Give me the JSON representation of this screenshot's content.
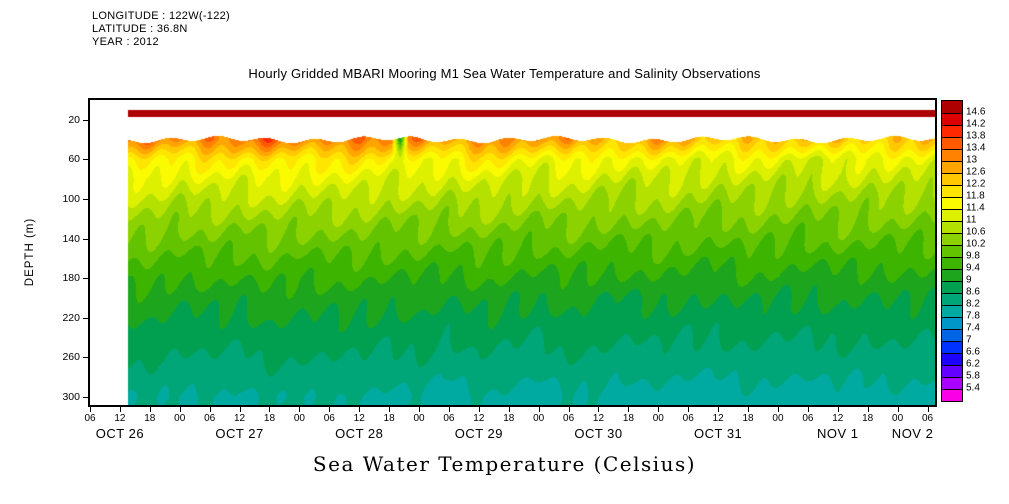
{
  "meta": {
    "longitude": "LONGITUDE : 122W(-122)",
    "latitude": "LATITUDE : 36.8N",
    "year": "YEAR : 2012"
  },
  "chart_data": {
    "type": "heatmap",
    "title": "Hourly Gridded MBARI Mooring M1 Sea Water Temperature and Salinity Observations",
    "xlabel": "Sea Water Temperature (Celsius)",
    "ylabel": "DEPTH (m)",
    "units": "Celsius",
    "y_units": "m",
    "y_ticks": [
      20,
      60,
      100,
      140,
      180,
      220,
      260,
      300
    ],
    "y_range": [
      0,
      308
    ],
    "x_start": "OCT 26 06:00",
    "x_end": "NOV 2 06:00",
    "x_tick_labels": [
      "06",
      "12",
      "18",
      "00",
      "06",
      "12",
      "18",
      "00",
      "06",
      "12",
      "18",
      "00",
      "06",
      "12",
      "18",
      "00",
      "06",
      "12",
      "18",
      "00",
      "06",
      "12",
      "18",
      "00",
      "06",
      "12",
      "18",
      "00",
      "06"
    ],
    "x_day_labels": [
      "OCT 26",
      "OCT 27",
      "OCT 28",
      "OCT 29",
      "OCT 30",
      "OCT 31",
      "NOV 1",
      "NOV 2"
    ],
    "day_label_tick_centers": [
      1,
      5,
      9,
      13,
      17,
      21,
      25,
      27.5
    ],
    "data_start_frac": 0.044,
    "surface_band": {
      "depth_top": 10,
      "depth_bottom": 17,
      "temperature": 14.7
    },
    "anomaly": {
      "tick_index": 10.35,
      "width_ticks": 0.28,
      "depth_top": 40,
      "depth_reach": 22,
      "temperature": 8.8
    },
    "grid": {
      "depths": [
        40,
        60,
        80,
        100,
        120,
        140,
        160,
        180,
        200,
        220,
        240,
        260,
        280,
        300
      ],
      "values": [
        [
          12.9,
          13.1,
          13.4,
          12.9,
          13.5,
          13.0,
          13.6,
          13.1,
          13.3,
          13.5,
          12.9,
          13.2,
          12.7,
          13.4,
          13.0,
          12.6,
          13.1,
          12.8,
          12.5,
          12.9,
          12.6,
          12.3,
          12.7,
          12.4,
          12.2,
          12.6,
          12.3,
          12.5,
          12.4
        ],
        [
          11.7,
          11.9,
          12.1,
          11.6,
          12.0,
          11.7,
          12.2,
          11.8,
          11.9,
          12.0,
          11.6,
          11.8,
          11.5,
          12.0,
          11.7,
          11.4,
          11.8,
          11.5,
          11.3,
          11.6,
          11.4,
          11.2,
          11.5,
          11.3,
          11.1,
          11.4,
          11.2,
          11.4,
          11.3
        ],
        [
          11.2,
          11.3,
          11.4,
          11.1,
          11.4,
          11.2,
          11.5,
          11.2,
          11.3,
          11.4,
          11.1,
          11.2,
          11.0,
          11.3,
          11.1,
          10.9,
          11.2,
          11.0,
          10.9,
          11.1,
          10.9,
          10.8,
          11.0,
          10.9,
          10.8,
          11.0,
          10.9,
          11.0,
          10.9
        ],
        [
          10.8,
          10.9,
          11.0,
          10.7,
          10.9,
          10.8,
          11.0,
          10.8,
          10.9,
          10.9,
          10.7,
          10.8,
          10.6,
          10.9,
          10.7,
          10.6,
          10.8,
          10.6,
          10.5,
          10.7,
          10.6,
          10.5,
          10.7,
          10.5,
          10.4,
          10.6,
          10.5,
          10.6,
          10.5
        ],
        [
          10.4,
          10.5,
          10.6,
          10.3,
          10.5,
          10.4,
          10.6,
          10.4,
          10.5,
          10.5,
          10.3,
          10.4,
          10.3,
          10.5,
          10.4,
          10.2,
          10.4,
          10.3,
          10.2,
          10.4,
          10.2,
          10.1,
          10.3,
          10.2,
          10.1,
          10.3,
          10.2,
          10.3,
          10.2
        ],
        [
          10.1,
          10.2,
          10.2,
          10.0,
          10.2,
          10.0,
          10.2,
          10.1,
          10.1,
          10.2,
          10.0,
          10.1,
          9.9,
          10.1,
          10.0,
          9.9,
          10.1,
          9.9,
          9.9,
          10.0,
          9.9,
          9.8,
          10.0,
          9.9,
          9.8,
          10.0,
          9.9,
          9.9,
          9.9
        ],
        [
          9.8,
          9.8,
          9.9,
          9.7,
          9.8,
          9.7,
          9.9,
          9.7,
          9.8,
          9.8,
          9.7,
          9.7,
          9.6,
          9.8,
          9.7,
          9.6,
          9.7,
          9.6,
          9.6,
          9.7,
          9.6,
          9.5,
          9.7,
          9.6,
          9.5,
          9.6,
          9.6,
          9.6,
          9.6
        ],
        [
          9.5,
          9.5,
          9.6,
          9.4,
          9.5,
          9.4,
          9.6,
          9.4,
          9.5,
          9.5,
          9.4,
          9.4,
          9.3,
          9.5,
          9.4,
          9.3,
          9.4,
          9.3,
          9.3,
          9.4,
          9.3,
          9.2,
          9.4,
          9.3,
          9.2,
          9.3,
          9.3,
          9.3,
          9.3
        ],
        [
          9.2,
          9.3,
          9.3,
          9.1,
          9.2,
          9.1,
          9.3,
          9.2,
          9.2,
          9.2,
          9.1,
          9.2,
          9.0,
          9.2,
          9.1,
          9.0,
          9.2,
          9.0,
          9.0,
          9.1,
          9.0,
          9.0,
          9.1,
          9.0,
          9.0,
          9.1,
          9.0,
          9.1,
          9.0
        ],
        [
          9.0,
          9.0,
          9.1,
          8.9,
          9.0,
          8.9,
          9.1,
          9.0,
          9.0,
          9.0,
          8.9,
          9.0,
          8.8,
          9.0,
          8.9,
          8.8,
          9.0,
          8.9,
          8.8,
          8.9,
          8.8,
          8.8,
          8.9,
          8.8,
          8.8,
          8.9,
          8.8,
          8.9,
          8.8
        ],
        [
          8.8,
          8.8,
          8.9,
          8.7,
          8.8,
          8.7,
          8.9,
          8.8,
          8.8,
          8.8,
          8.7,
          8.8,
          8.6,
          8.8,
          8.7,
          8.6,
          8.8,
          8.7,
          8.6,
          8.7,
          8.6,
          8.6,
          8.7,
          8.6,
          8.6,
          8.7,
          8.6,
          8.7,
          8.6
        ],
        [
          8.6,
          8.6,
          8.7,
          8.5,
          8.6,
          8.5,
          8.7,
          8.6,
          8.6,
          8.6,
          8.5,
          8.6,
          8.4,
          8.6,
          8.5,
          8.4,
          8.6,
          8.5,
          8.4,
          8.5,
          8.4,
          8.4,
          8.5,
          8.4,
          8.4,
          8.5,
          8.4,
          8.5,
          8.4
        ],
        [
          8.4,
          8.4,
          8.5,
          8.3,
          8.4,
          8.3,
          8.5,
          8.4,
          8.4,
          8.4,
          8.3,
          8.4,
          8.2,
          8.4,
          8.3,
          8.2,
          8.4,
          8.3,
          8.2,
          8.3,
          8.2,
          8.2,
          8.3,
          8.2,
          8.2,
          8.3,
          8.2,
          8.3,
          8.2
        ],
        [
          8.3,
          8.2,
          8.3,
          8.1,
          8.2,
          8.1,
          8.3,
          8.2,
          8.2,
          8.2,
          8.1,
          8.2,
          7.9,
          8.2,
          8.1,
          7.9,
          8.2,
          8.1,
          7.9,
          8.1,
          8.0,
          7.9,
          8.1,
          8.0,
          7.9,
          8.1,
          8.0,
          8.1,
          8.0
        ]
      ]
    },
    "colorbar": {
      "labels": [
        "14.6",
        "14.2",
        "13.8",
        "13.4",
        "13",
        "12.6",
        "12.2",
        "11.8",
        "11.4",
        "11",
        "10.6",
        "10.2",
        "9.8",
        "9.4",
        "9",
        "8.6",
        "8.2",
        "7.8",
        "7.4",
        "7",
        "6.6",
        "6.2",
        "5.8",
        "5.4"
      ],
      "level_step": 0.4,
      "level_min": 5.4,
      "level_max": 14.6,
      "colors_top_to_bottom": [
        "#AE0000",
        "#DC0000",
        "#FF2800",
        "#FF5A00",
        "#FF8200",
        "#FFA500",
        "#FFC800",
        "#FFE600",
        "#FAFA00",
        "#DCF000",
        "#B4E100",
        "#8CD200",
        "#64C300",
        "#3CB400",
        "#1EA51E",
        "#00A050",
        "#00A578",
        "#00AAA0",
        "#0096C8",
        "#0064E6",
        "#0032FF",
        "#1E00FF",
        "#6400FF",
        "#AA00FF",
        "#FA00E6"
      ]
    }
  }
}
